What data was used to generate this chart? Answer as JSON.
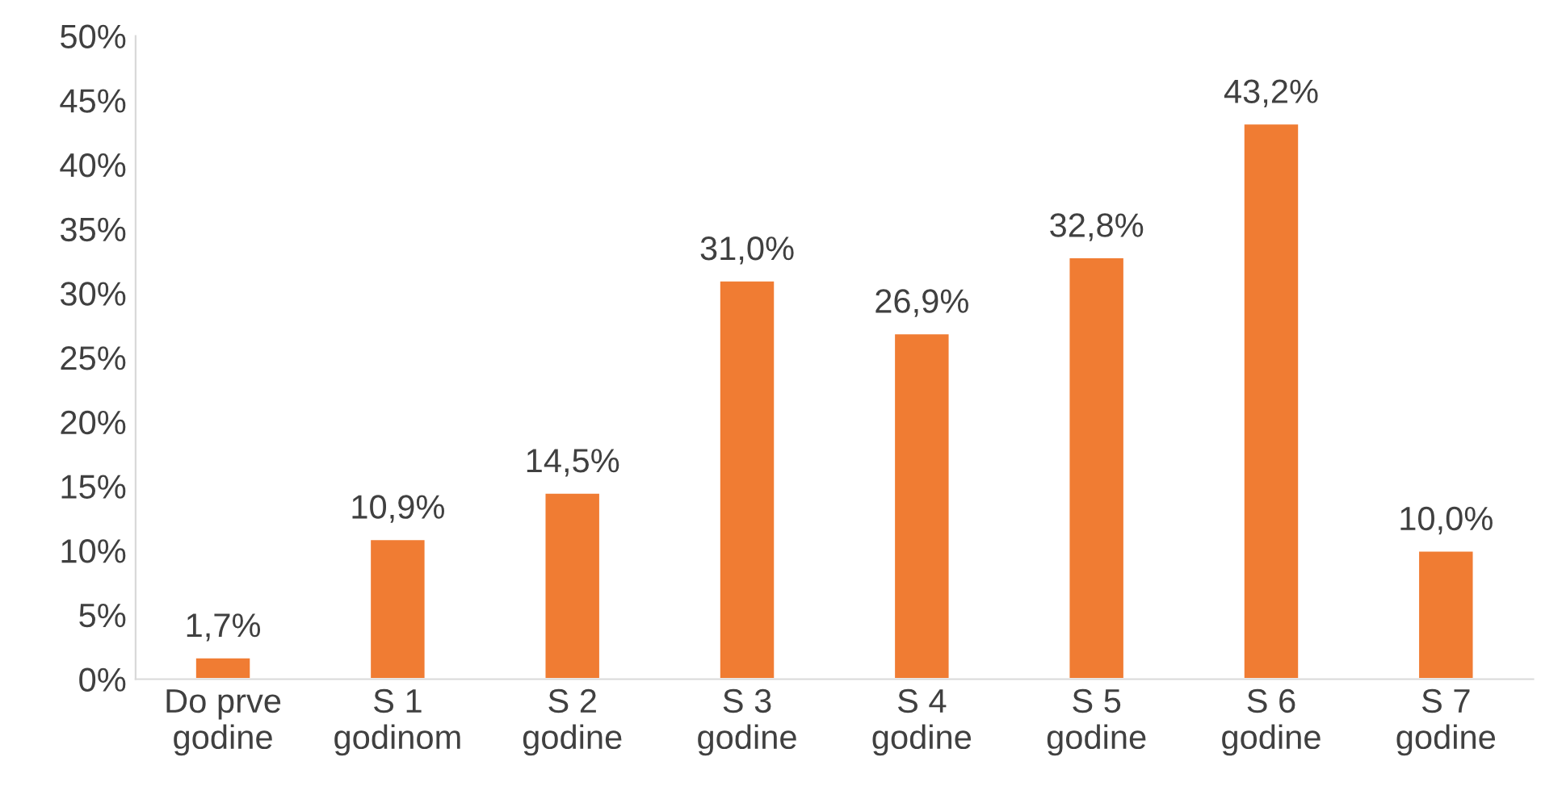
{
  "chart_data": {
    "type": "bar",
    "categories": [
      "Do prve\ngodine",
      "S 1\ngodinom",
      "S 2\ngodine",
      "S 3\ngodine",
      "S 4\ngodine",
      "S 5\ngodine",
      "S 6\ngodine",
      "S 7\ngodine"
    ],
    "values": [
      1.7,
      10.9,
      14.5,
      31.0,
      26.9,
      32.8,
      43.2,
      10.0
    ],
    "value_labels": [
      "1,7%",
      "10,9%",
      "14,5%",
      "31,0%",
      "26,9%",
      "32,8%",
      "43,2%",
      "10,0%"
    ],
    "color": "#f07c33",
    "ylim": [
      0,
      50
    ],
    "yticks": [
      {
        "value": 0,
        "label": "0%"
      },
      {
        "value": 5,
        "label": "5%"
      },
      {
        "value": 10,
        "label": "10%"
      },
      {
        "value": 15,
        "label": "15%"
      },
      {
        "value": 20,
        "label": "20%"
      },
      {
        "value": 25,
        "label": "25%"
      },
      {
        "value": 30,
        "label": "30%"
      },
      {
        "value": 35,
        "label": "35%"
      },
      {
        "value": 40,
        "label": "40%"
      },
      {
        "value": 45,
        "label": "45%"
      },
      {
        "value": 50,
        "label": "50%"
      }
    ],
    "grid": false,
    "legend": false
  }
}
